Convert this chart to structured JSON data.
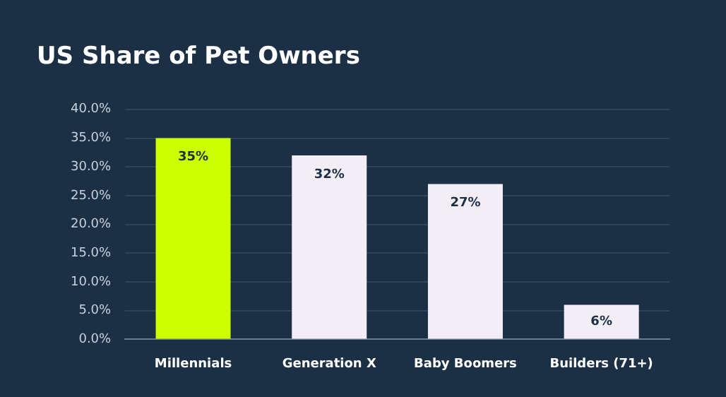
{
  "chart_data": {
    "type": "bar",
    "title": "US Share of Pet Owners",
    "categories": [
      "Millennials",
      "Generation X",
      "Baby Boomers",
      "Builders (71+)"
    ],
    "values": [
      35,
      32,
      27,
      6
    ],
    "colors": [
      "#ccff00",
      "#f3eef6",
      "#f3eef6",
      "#f3eef6"
    ],
    "value_labels": [
      "35%",
      "32%",
      "27%",
      "6%"
    ],
    "ylim": [
      0,
      40
    ],
    "yticks": [
      {
        "value": 0,
        "label": "0.0%"
      },
      {
        "value": 5,
        "label": "5.0%"
      },
      {
        "value": 10,
        "label": "10.0%"
      },
      {
        "value": 15,
        "label": "15.0%"
      },
      {
        "value": 20,
        "label": "20.0%"
      },
      {
        "value": 25,
        "label": "25.0%"
      },
      {
        "value": 30,
        "label": "30.0%"
      },
      {
        "value": 35,
        "label": "35.0%"
      },
      {
        "value": 40,
        "label": "40.0%"
      }
    ],
    "grid": "y"
  }
}
